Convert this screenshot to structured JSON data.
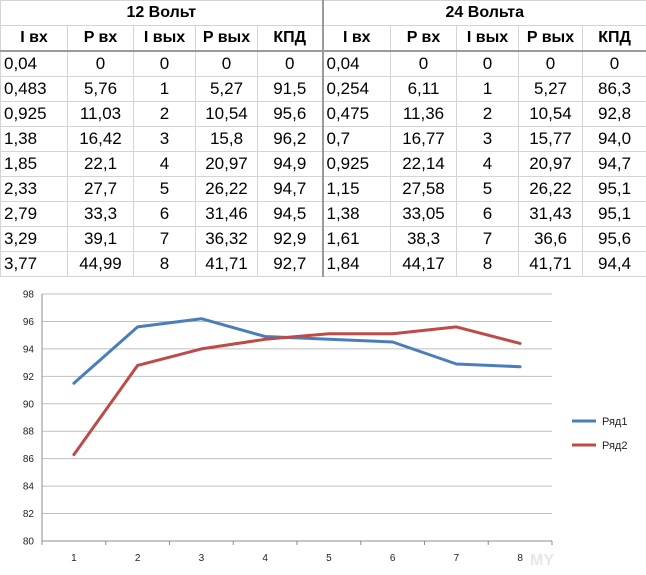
{
  "table": {
    "groups": [
      "12 Вольт",
      "24 Вольта"
    ],
    "headers": [
      "I вх",
      "P вх",
      "I вых",
      "P вых",
      "КПД",
      "I вх",
      "P вх",
      "I вых",
      "P вых",
      "КПД"
    ],
    "rows": [
      [
        "0,04",
        "0",
        "0",
        "0",
        "0",
        "0,04",
        "0",
        "0",
        "0",
        "0"
      ],
      [
        "0,483",
        "5,76",
        "1",
        "5,27",
        "91,5",
        "0,254",
        "6,11",
        "1",
        "5,27",
        "86,3"
      ],
      [
        "0,925",
        "11,03",
        "2",
        "10,54",
        "95,6",
        "0,475",
        "11,36",
        "2",
        "10,54",
        "92,8"
      ],
      [
        "1,38",
        "16,42",
        "3",
        "15,8",
        "96,2",
        "0,7",
        "16,77",
        "3",
        "15,77",
        "94,0"
      ],
      [
        "1,85",
        "22,1",
        "4",
        "20,97",
        "94,9",
        "0,925",
        "22,14",
        "4",
        "20,97",
        "94,7"
      ],
      [
        "2,33",
        "27,7",
        "5",
        "26,22",
        "94,7",
        "1,15",
        "27,58",
        "5",
        "26,22",
        "95,1"
      ],
      [
        "2,79",
        "33,3",
        "6",
        "31,46",
        "94,5",
        "1,38",
        "33,05",
        "6",
        "31,43",
        "95,1"
      ],
      [
        "3,29",
        "39,1",
        "7",
        "36,32",
        "92,9",
        "1,61",
        "38,3",
        "7",
        "36,6",
        "95,6"
      ],
      [
        "3,77",
        "44,99",
        "8",
        "41,71",
        "92,7",
        "1,84",
        "44,17",
        "8",
        "41,71",
        "94,4"
      ]
    ]
  },
  "chart_data": {
    "type": "line",
    "categories": [
      "1",
      "2",
      "3",
      "4",
      "5",
      "6",
      "7",
      "8"
    ],
    "series": [
      {
        "name": "Ряд1",
        "color": "#4a7ebb",
        "values": [
          91.5,
          95.6,
          96.2,
          94.9,
          94.7,
          94.5,
          92.9,
          92.7
        ]
      },
      {
        "name": "Ряд2",
        "color": "#be4b48",
        "values": [
          86.3,
          92.8,
          94.0,
          94.7,
          95.1,
          95.1,
          95.6,
          94.4
        ]
      }
    ],
    "ylim": [
      80,
      98
    ],
    "yticks": [
      "80",
      "82",
      "84",
      "86",
      "88",
      "90",
      "92",
      "94",
      "96",
      "98"
    ],
    "grid": true,
    "legend": "right",
    "title": "",
    "xlabel": "",
    "ylabel": ""
  },
  "watermark": "MY"
}
